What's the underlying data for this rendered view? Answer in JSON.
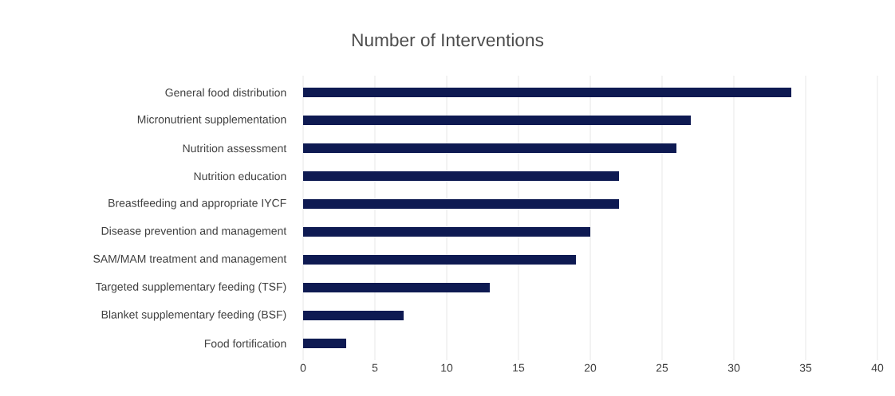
{
  "chart_data": {
    "type": "bar",
    "orientation": "horizontal",
    "title": "Number of Interventions",
    "categories": [
      "General food distribution",
      "Micronutrient supplementation",
      "Nutrition assessment",
      "Nutrition education",
      "Breastfeeding and appropriate IYCF",
      "Disease prevention and management",
      "SAM/MAM treatment and management",
      "Targeted supplementary feeding (TSF)",
      "Blanket supplementary feeding (BSF)",
      "Food fortification"
    ],
    "values": [
      34,
      27,
      26,
      22,
      22,
      20,
      19,
      13,
      7,
      3
    ],
    "color": "#0e1a52",
    "xlim": [
      0,
      40
    ],
    "xticks": [
      0,
      5,
      10,
      15,
      20,
      25,
      30,
      35,
      40
    ],
    "grid": "x"
  }
}
